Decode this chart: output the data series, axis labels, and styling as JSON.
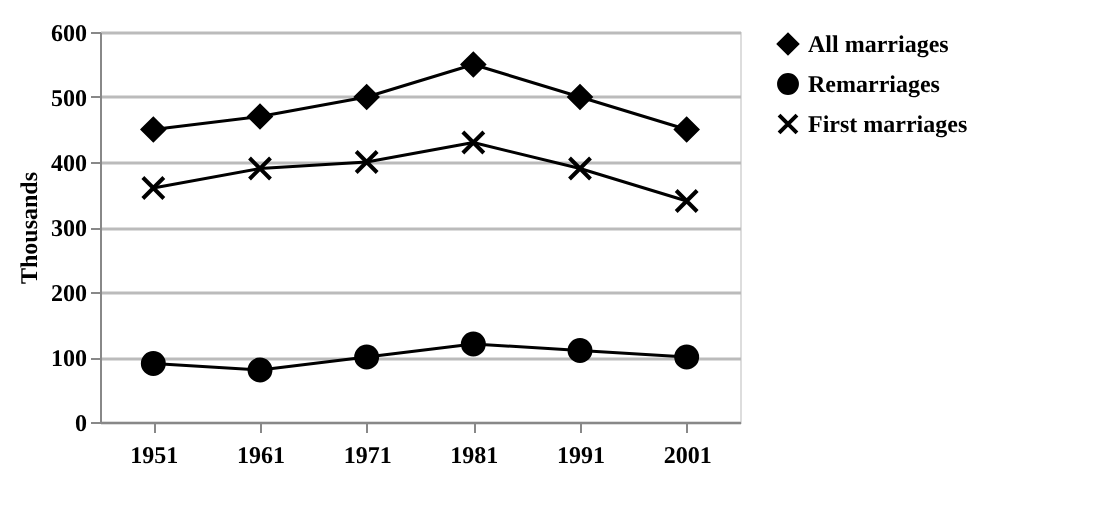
{
  "chart_data": {
    "type": "line",
    "ylabel": "Thousands",
    "categories": [
      "1951",
      "1961",
      "1971",
      "1981",
      "1991",
      "2001"
    ],
    "series": [
      {
        "name": "All marriages",
        "color": "#000000",
        "marker": "diamond",
        "values": [
          450,
          470,
          500,
          550,
          500,
          450
        ]
      },
      {
        "name": "Remarriages",
        "color": "#000000",
        "marker": "circle",
        "values": [
          90,
          80,
          100,
          120,
          110,
          100
        ]
      },
      {
        "name": "First marriages",
        "color": "#000000",
        "marker": "cross",
        "values": [
          360,
          390,
          400,
          430,
          390,
          340
        ]
      }
    ],
    "ylim": [
      0,
      600
    ],
    "yticks": [
      0,
      100,
      200,
      300,
      400,
      500,
      600
    ],
    "grid": "y",
    "legend": "right",
    "line_style": "solid"
  }
}
